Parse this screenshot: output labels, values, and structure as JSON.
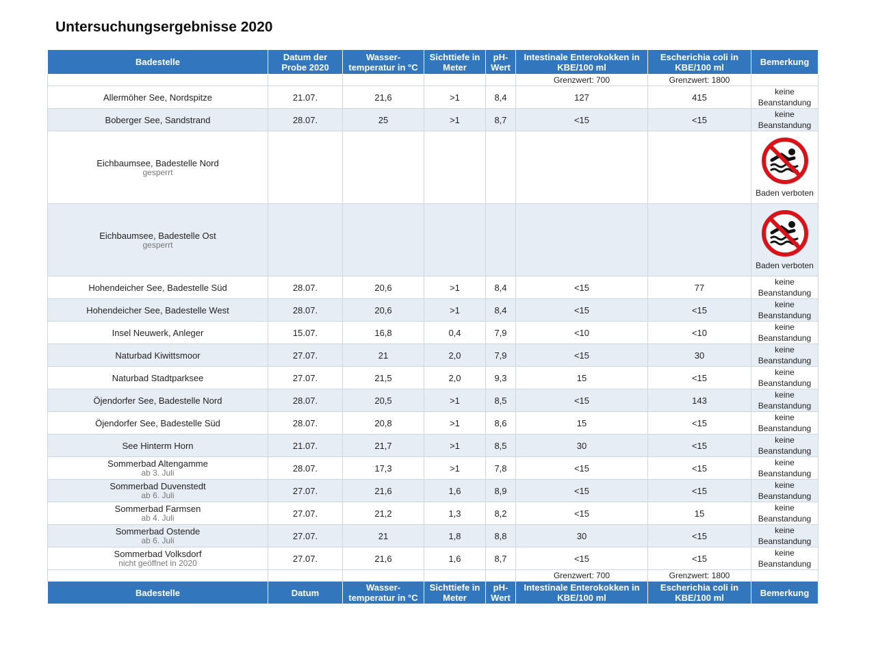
{
  "title": "Untersuchungsergebnisse 2020",
  "table": {
    "header": [
      "Badestelle",
      "Datum der Probe 2020",
      "Wasser-temperatur in °C",
      "Sichttiefe in Meter",
      "pH-Wert",
      "Intestinale Enterokokken in KBE/100 ml",
      "Escherichia coli in KBE/100 ml",
      "Bemerkung"
    ],
    "limits": [
      "Grenzwert: 700",
      "Grenzwert: 1800"
    ],
    "rows": [
      {
        "name": "Allermöher See, Nordspitze",
        "values": [
          "21.07.",
          "21,6",
          ">1",
          "8,4",
          "127",
          "415"
        ],
        "remark": "keine Beanstandung"
      },
      {
        "name": "Boberger See, Sandstrand",
        "values": [
          "28.07.",
          "25",
          ">1",
          "8,7",
          "<15",
          "<15"
        ],
        "remark": "keine Beanstandung"
      },
      {
        "name": "Eichbaumsee, Badestelle Nord",
        "note": "gesperrt",
        "remark": "Baden verboten",
        "prohibited": true
      },
      {
        "name": "Eichbaumsee, Badestelle Ost",
        "note": "gesperrt",
        "remark": "Baden verboten",
        "prohibited": true
      },
      {
        "name": "Hohendeicher See, Badestelle Süd",
        "values": [
          "28.07.",
          "20,6",
          ">1",
          "8,4",
          "<15",
          "77"
        ],
        "remark": "keine Beanstandung"
      },
      {
        "name": "Hohendeicher See, Badestelle West",
        "values": [
          "28.07.",
          "20,6",
          ">1",
          "8,4",
          "<15",
          "<15"
        ],
        "remark": "keine Beanstandung"
      },
      {
        "name": "Insel Neuwerk, Anleger",
        "values": [
          "15.07.",
          "16,8",
          "0,4",
          "7,9",
          "<10",
          "<10"
        ],
        "remark": "keine Beanstandung"
      },
      {
        "name": "Naturbad Kiwittsmoor",
        "values": [
          "27.07.",
          "21",
          "2,0",
          "7,9",
          "<15",
          "30"
        ],
        "remark": "keine Beanstandung"
      },
      {
        "name": "Naturbad Stadtparksee",
        "values": [
          "27.07.",
          "21,5",
          "2,0",
          "9,3",
          "15",
          "<15"
        ],
        "remark": "keine Beanstandung"
      },
      {
        "name": "Öjendorfer See, Badestelle Nord",
        "values": [
          "28.07.",
          "20,5",
          ">1",
          "8,5",
          "<15",
          "143"
        ],
        "remark": "keine Beanstandung"
      },
      {
        "name": "Öjendorfer See, Badestelle Süd",
        "values": [
          "28.07.",
          "20,8",
          ">1",
          "8,6",
          "15",
          "<15"
        ],
        "remark": "keine Beanstandung"
      },
      {
        "name": "See Hinterm Horn",
        "values": [
          "21.07.",
          "21,7",
          ">1",
          "8,5",
          "30",
          "<15"
        ],
        "remark": "keine Beanstandung"
      },
      {
        "name": "Sommerbad Altengamme",
        "note": "ab 3. Juli",
        "values": [
          "28.07.",
          "17,3",
          ">1",
          "7,8",
          "<15",
          "<15"
        ],
        "remark": "keine Beanstandung"
      },
      {
        "name": "Sommerbad Duvenstedt",
        "note": "ab 6. Juli",
        "values": [
          "27.07.",
          "21,6",
          "1,6",
          "8,9",
          "<15",
          "<15"
        ],
        "remark": "keine Beanstandung"
      },
      {
        "name": "Sommerbad Farmsen",
        "note": "ab 4. Juli",
        "values": [
          "27.07.",
          "21,2",
          "1,3",
          "8,2",
          "<15",
          "15"
        ],
        "remark": "keine Beanstandung"
      },
      {
        "name": "Sommerbad Ostende",
        "note": "ab 6. Juli",
        "values": [
          "27.07.",
          "21",
          "1,8",
          "8,8",
          "30",
          "<15"
        ],
        "remark": "keine Beanstandung"
      },
      {
        "name": "Sommerbad Volksdorf",
        "note": "nicht geöffnet in 2020",
        "values": [
          "27.07.",
          "21,6",
          "1,6",
          "8,7",
          "<15",
          "<15"
        ],
        "remark": "keine Beanstandung"
      }
    ],
    "footer": [
      "Badestelle",
      "Datum",
      "Wasser-temperatur in °C",
      "Sichttiefe in Meter",
      "pH-Wert",
      "Intestinale Enterokokken in KBE/100 ml",
      "Escherichia coli in KBE/100 ml",
      "Bemerkung"
    ]
  }
}
